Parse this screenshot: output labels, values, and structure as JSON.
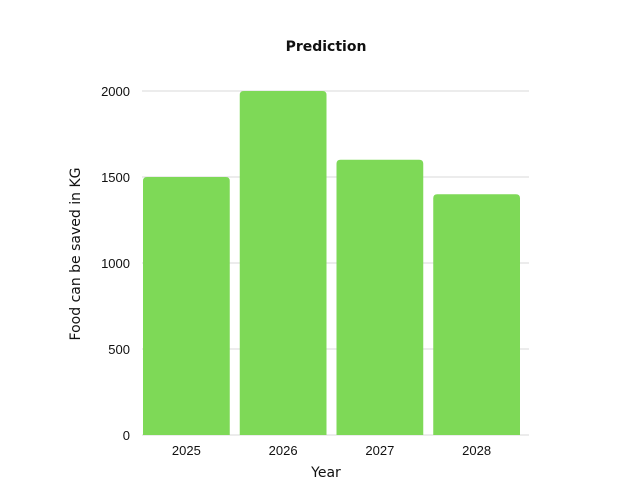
{
  "chart_data": {
    "type": "bar",
    "title": "Prediction",
    "xlabel": "Year",
    "ylabel": "Food  can be saved in KG",
    "categories": [
      "2025",
      "2026",
      "2027",
      "2028"
    ],
    "values": [
      1500,
      2000,
      1600,
      1400
    ],
    "ylim": [
      0,
      2000
    ],
    "yticks": [
      "0",
      "500",
      "1000",
      "1500",
      "2000"
    ],
    "grid": true,
    "legend": "none",
    "bar_color": "#7ED957",
    "grid_color": "#d9d9d9"
  }
}
